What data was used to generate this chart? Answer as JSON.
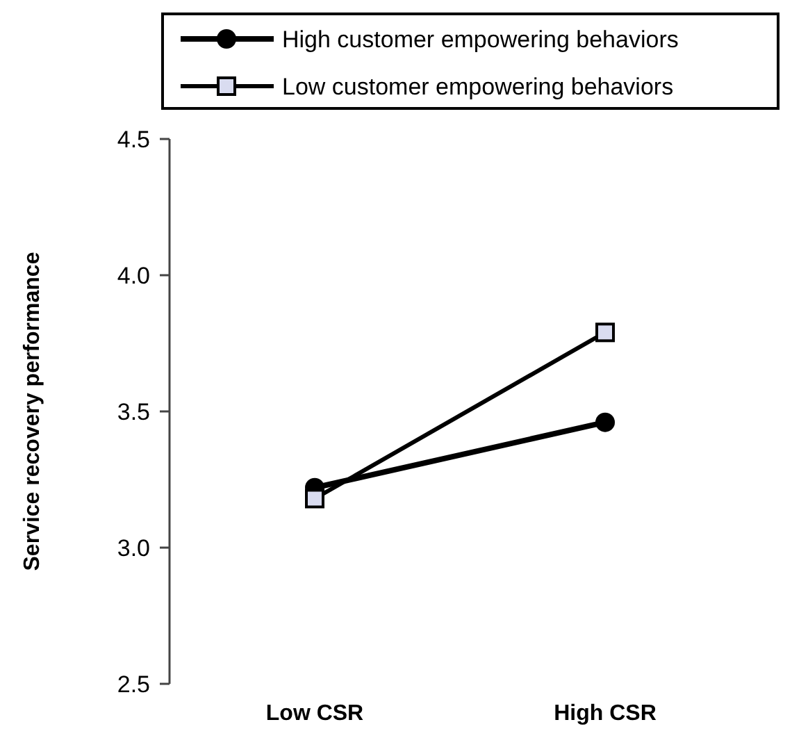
{
  "chart_data": {
    "type": "line",
    "ylabel": "Service recovery performance",
    "categories": [
      "Low CSR",
      "High CSR"
    ],
    "series": [
      {
        "name": "High customer empowering behaviors",
        "color": "#000000",
        "marker": "circle",
        "values": [
          3.22,
          3.46
        ]
      },
      {
        "name": "Low customer empowering behaviors",
        "color": "#000000",
        "marker": "square",
        "values": [
          3.18,
          3.79
        ]
      }
    ],
    "ylim": [
      2.5,
      4.5
    ],
    "yticks": [
      {
        "value": 2.5,
        "label": "2.5"
      },
      {
        "value": 3,
        "label": "3.0"
      },
      {
        "value": 3.5,
        "label": "3.5"
      },
      {
        "value": 4,
        "label": "4.0"
      },
      {
        "value": 4.5,
        "label": "4.5"
      }
    ],
    "legend": "top",
    "grid": false,
    "line_style": "solid"
  }
}
